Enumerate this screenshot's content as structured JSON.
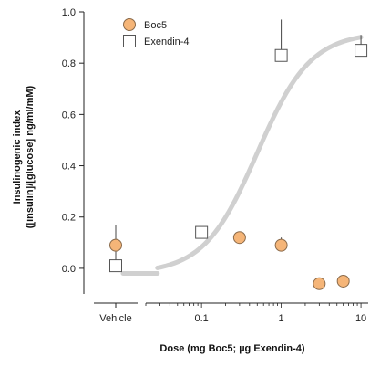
{
  "chart_data": {
    "type": "scatter",
    "title": "",
    "xlabel": "Dose (mg Boc5; µg Exendin-4)",
    "ylabel_lines": [
      "Insulinogenic index",
      "([insulin]/[glucose] ng/ml/mM)"
    ],
    "x_scale": "log",
    "xlim": [
      0.02,
      12
    ],
    "ylim": [
      -0.1,
      1.0
    ],
    "y_ticks": [
      0.0,
      0.2,
      0.4,
      0.6,
      0.8,
      1.0
    ],
    "y_tick_labels": [
      "0.0",
      "0.2",
      "0.4",
      "0.6",
      "0.8",
      "1.0"
    ],
    "x_ticks": [
      0.1,
      1,
      10
    ],
    "x_tick_labels": [
      "0.1",
      "1",
      "10"
    ],
    "vehicle_label": "Vehicle",
    "legend_position": "top-left",
    "series": [
      {
        "name": "Boc5",
        "marker": "circle",
        "color": "#f5b578",
        "edge_color": "#8a6a4a",
        "vehicle": {
          "y": 0.09,
          "err": 0.0
        },
        "points": [
          {
            "x": 0.3,
            "y": 0.12,
            "err": 0.0
          },
          {
            "x": 1,
            "y": 0.09,
            "err": 0.03
          },
          {
            "x": 3,
            "y": -0.06,
            "err": 0.0
          },
          {
            "x": 6,
            "y": -0.05,
            "err": 0.0
          }
        ]
      },
      {
        "name": "Exendin-4",
        "marker": "square",
        "color": "#ffffff",
        "edge_color": "#555555",
        "vehicle": {
          "y": 0.01,
          "err": 0.16
        },
        "points": [
          {
            "x": 0.1,
            "y": 0.14,
            "err": 0.0
          },
          {
            "x": 1,
            "y": 0.83,
            "err": 0.14
          },
          {
            "x": 10,
            "y": 0.85,
            "err": 0.06
          }
        ]
      }
    ],
    "fit_curve": {
      "series": "Exendin-4",
      "color": "#d0d0d0",
      "bottom": -0.02,
      "top": 0.92,
      "ec50": 0.5,
      "hill": 1.3,
      "x_range": [
        0.028,
        10
      ]
    }
  }
}
